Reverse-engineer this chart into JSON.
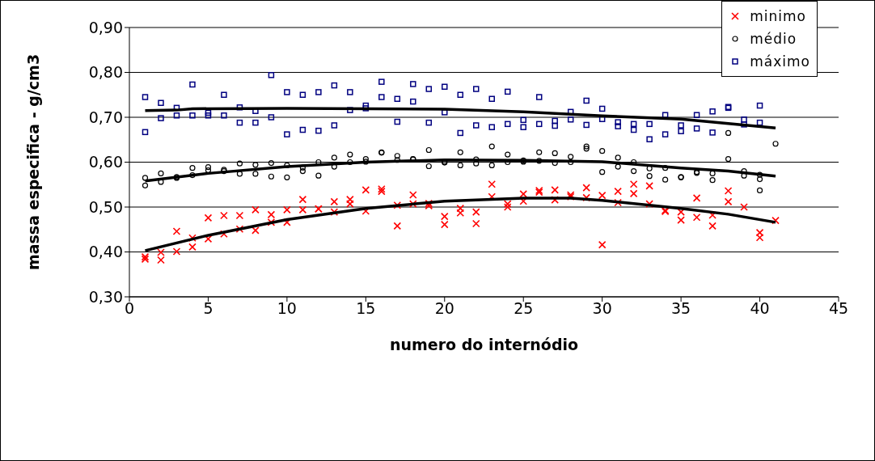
{
  "chart_data": {
    "type": "scatter",
    "xlabel": "numero do internódio",
    "ylabel": "massa especifica - g/cm3",
    "xlim": [
      0,
      45
    ],
    "xticks": [
      0,
      5,
      10,
      15,
      20,
      25,
      30,
      35,
      40,
      45
    ],
    "ylim": [
      0.3,
      0.9
    ],
    "yticks": [
      {
        "value": 0.3,
        "label": "0,30"
      },
      {
        "value": 0.4,
        "label": "0,40"
      },
      {
        "value": 0.5,
        "label": "0,50"
      },
      {
        "value": 0.6,
        "label": "0,60"
      },
      {
        "value": 0.7,
        "label": "0,70"
      },
      {
        "value": 0.8,
        "label": "0,80"
      },
      {
        "value": 0.9,
        "label": "0,90"
      }
    ],
    "grid": "y",
    "legend": "top right",
    "series": [
      {
        "name": "minimo",
        "color": "#ff0000",
        "marker": "cross",
        "x": [
          1,
          1,
          2,
          2,
          3,
          3,
          4,
          4,
          5,
          5,
          6,
          6,
          7,
          7,
          8,
          8,
          9,
          9,
          10,
          10,
          11,
          11,
          12,
          12,
          13,
          13,
          14,
          14,
          15,
          15,
          16,
          16,
          17,
          17,
          18,
          18,
          19,
          19,
          20,
          20,
          21,
          21,
          22,
          22,
          23,
          23,
          24,
          24,
          25,
          25,
          26,
          26,
          27,
          27,
          28,
          28,
          29,
          29,
          30,
          30,
          31,
          31,
          32,
          32,
          33,
          33,
          34,
          34,
          35,
          35,
          36,
          36,
          37,
          37,
          38,
          38,
          39,
          40,
          40,
          41
        ],
        "values": [
          0.389,
          0.384,
          0.399,
          0.382,
          0.446,
          0.401,
          0.431,
          0.411,
          0.476,
          0.429,
          0.481,
          0.44,
          0.481,
          0.451,
          0.494,
          0.448,
          0.483,
          0.466,
          0.494,
          0.466,
          0.517,
          0.494,
          0.496,
          0.496,
          0.512,
          0.489,
          0.517,
          0.507,
          0.538,
          0.491,
          0.54,
          0.535,
          0.504,
          0.458,
          0.527,
          0.507,
          0.508,
          0.503,
          0.479,
          0.461,
          0.497,
          0.487,
          0.489,
          0.463,
          0.551,
          0.523,
          0.507,
          0.5,
          0.529,
          0.513,
          0.537,
          0.533,
          0.538,
          0.516,
          0.527,
          0.523,
          0.543,
          0.521,
          0.526,
          0.416,
          0.535,
          0.51,
          0.551,
          0.53,
          0.547,
          0.507,
          0.492,
          0.49,
          0.489,
          0.471,
          0.52,
          0.477,
          0.482,
          0.458,
          0.536,
          0.512,
          0.5,
          0.443,
          0.432,
          0.47
        ]
      },
      {
        "name": "médio",
        "color": "#000000",
        "marker": "circle",
        "x": [
          1,
          1,
          2,
          2,
          3,
          3,
          4,
          4,
          5,
          5,
          6,
          6,
          7,
          7,
          8,
          8,
          9,
          9,
          10,
          10,
          11,
          11,
          12,
          12,
          13,
          13,
          14,
          14,
          15,
          15,
          16,
          16,
          17,
          17,
          18,
          18,
          19,
          19,
          20,
          20,
          21,
          21,
          22,
          22,
          23,
          23,
          24,
          24,
          25,
          25,
          26,
          26,
          27,
          27,
          28,
          28,
          29,
          29,
          30,
          30,
          31,
          31,
          32,
          32,
          33,
          33,
          34,
          34,
          35,
          35,
          36,
          36,
          37,
          37,
          38,
          38,
          39,
          39,
          40,
          40,
          40,
          41
        ],
        "values": [
          0.565,
          0.548,
          0.575,
          0.556,
          0.567,
          0.565,
          0.587,
          0.571,
          0.589,
          0.582,
          0.583,
          0.58,
          0.597,
          0.574,
          0.594,
          0.574,
          0.598,
          0.568,
          0.593,
          0.566,
          0.588,
          0.58,
          0.6,
          0.57,
          0.61,
          0.59,
          0.617,
          0.6,
          0.607,
          0.601,
          0.622,
          0.621,
          0.614,
          0.605,
          0.607,
          0.606,
          0.627,
          0.591,
          0.601,
          0.599,
          0.622,
          0.593,
          0.606,
          0.597,
          0.635,
          0.593,
          0.617,
          0.6,
          0.604,
          0.601,
          0.622,
          0.603,
          0.62,
          0.598,
          0.612,
          0.6,
          0.635,
          0.63,
          0.625,
          0.578,
          0.61,
          0.59,
          0.6,
          0.58,
          0.586,
          0.569,
          0.587,
          0.561,
          0.567,
          0.566,
          0.578,
          0.576,
          0.575,
          0.56,
          0.665,
          0.607,
          0.58,
          0.57,
          0.572,
          0.562,
          0.537,
          0.641
        ]
      },
      {
        "name": "máximo",
        "color": "#000080",
        "marker": "square",
        "x": [
          1,
          1,
          2,
          2,
          3,
          3,
          4,
          4,
          5,
          5,
          6,
          6,
          7,
          7,
          8,
          8,
          9,
          9,
          10,
          10,
          11,
          11,
          12,
          12,
          13,
          13,
          14,
          14,
          15,
          15,
          16,
          16,
          17,
          17,
          18,
          18,
          19,
          19,
          20,
          20,
          21,
          21,
          22,
          22,
          23,
          23,
          24,
          24,
          25,
          25,
          26,
          26,
          27,
          27,
          28,
          28,
          29,
          29,
          30,
          30,
          31,
          31,
          32,
          32,
          33,
          33,
          34,
          34,
          35,
          35,
          36,
          36,
          37,
          37,
          38,
          38,
          39,
          39,
          40,
          40
        ],
        "values": [
          0.745,
          0.667,
          0.732,
          0.698,
          0.721,
          0.704,
          0.773,
          0.704,
          0.71,
          0.704,
          0.75,
          0.704,
          0.722,
          0.688,
          0.714,
          0.688,
          0.794,
          0.7,
          0.756,
          0.662,
          0.75,
          0.672,
          0.756,
          0.67,
          0.771,
          0.682,
          0.756,
          0.716,
          0.726,
          0.72,
          0.779,
          0.745,
          0.741,
          0.69,
          0.774,
          0.735,
          0.763,
          0.688,
          0.768,
          0.711,
          0.75,
          0.665,
          0.763,
          0.682,
          0.741,
          0.678,
          0.757,
          0.685,
          0.694,
          0.678,
          0.745,
          0.685,
          0.692,
          0.681,
          0.712,
          0.695,
          0.737,
          0.683,
          0.719,
          0.696,
          0.689,
          0.68,
          0.685,
          0.672,
          0.685,
          0.651,
          0.705,
          0.662,
          0.682,
          0.669,
          0.705,
          0.675,
          0.713,
          0.666,
          0.723,
          0.721,
          0.695,
          0.684,
          0.726,
          0.688
        ]
      },
      {
        "type": "line",
        "color": "#000000",
        "marker": "none",
        "x": [
          1,
          5,
          10,
          15,
          20,
          25,
          28,
          30,
          35,
          38,
          41
        ],
        "values": [
          0.403,
          0.437,
          0.472,
          0.497,
          0.513,
          0.52,
          0.52,
          0.515,
          0.497,
          0.484,
          0.466
        ]
      },
      {
        "type": "line",
        "color": "#000000",
        "marker": "none",
        "x": [
          1,
          5,
          10,
          15,
          20,
          25,
          30,
          35,
          38,
          41
        ],
        "values": [
          0.558,
          0.575,
          0.59,
          0.6,
          0.605,
          0.604,
          0.601,
          0.587,
          0.58,
          0.569
        ]
      },
      {
        "type": "line",
        "color": "#000000",
        "marker": "none",
        "x": [
          1,
          3,
          4,
          10,
          20,
          25,
          30,
          35,
          38,
          41
        ],
        "values": [
          0.715,
          0.716,
          0.719,
          0.72,
          0.718,
          0.712,
          0.703,
          0.696,
          0.686,
          0.676
        ]
      }
    ]
  }
}
